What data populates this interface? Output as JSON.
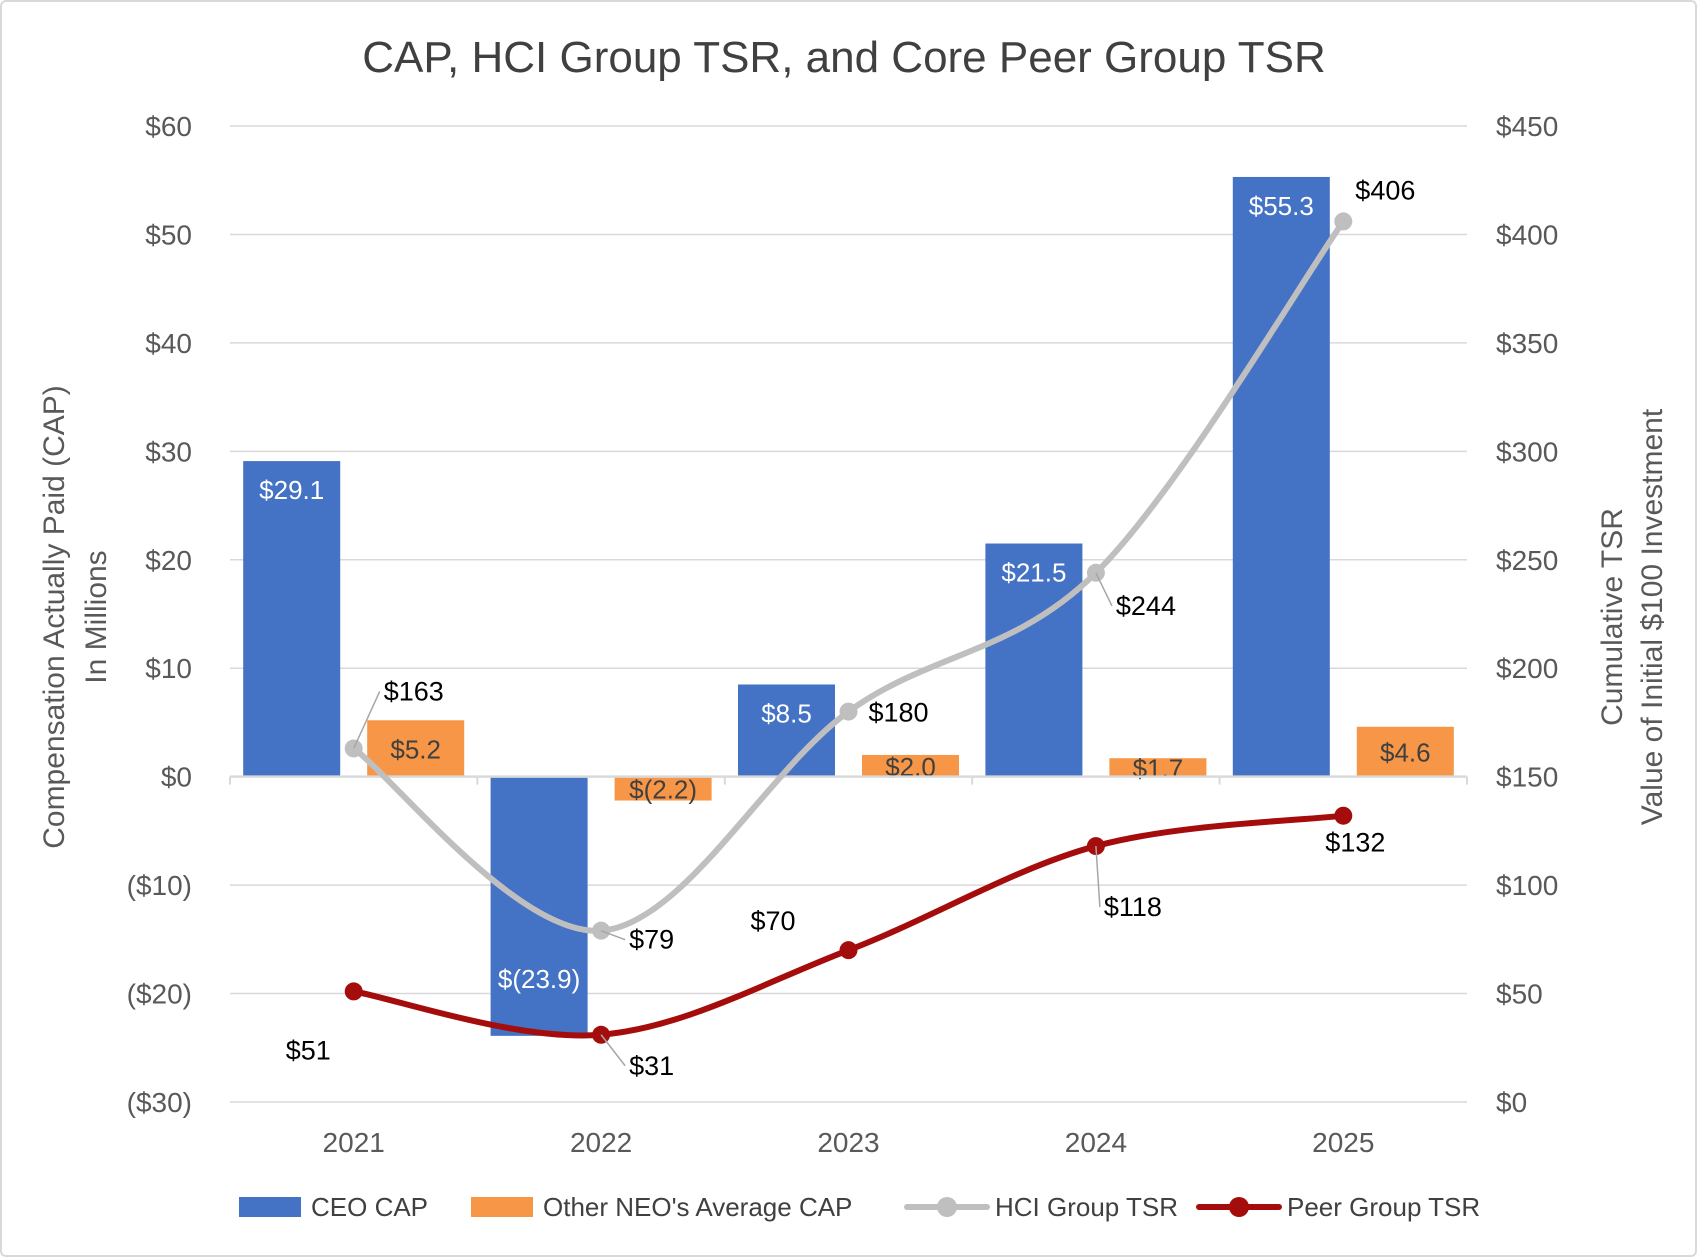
{
  "chart_data": {
    "type": "bar",
    "title": "CAP, HCI Group TSR, and Core Peer Group TSR",
    "categories": [
      "2021",
      "2022",
      "2023",
      "2024",
      "2025"
    ],
    "y_left": {
      "label_lines": [
        "Compensation Actually Paid (CAP)",
        "In Millions"
      ],
      "min": -30,
      "max": 60,
      "step": 10,
      "tick_labels": [
        "($30)",
        "($20)",
        "($10)",
        "$0",
        "$10",
        "$20",
        "$30",
        "$40",
        "$50",
        "$60"
      ]
    },
    "y_right": {
      "label_lines": [
        "Cumulative TSR",
        "Value of Initial $100 Investment"
      ],
      "min": 0,
      "max": 450,
      "step": 50,
      "tick_labels": [
        "$0",
        "$50",
        "$100",
        "$150",
        "$200",
        "$250",
        "$300",
        "$350",
        "$400",
        "$450"
      ]
    },
    "grid": true,
    "legend_position": "bottom",
    "series": [
      {
        "name": "CEO CAP",
        "type": "bar",
        "axis": "left",
        "color": "#4472c4",
        "values": [
          29.1,
          -23.9,
          8.5,
          21.5,
          55.3
        ],
        "labels": [
          "$29.1",
          "$(23.9)",
          "$8.5",
          "$21.5",
          "$55.3"
        ]
      },
      {
        "name": "Other NEO's Average CAP",
        "type": "bar",
        "axis": "left",
        "color": "#f79646",
        "values": [
          5.2,
          -2.2,
          2.0,
          1.7,
          4.6
        ],
        "labels": [
          "$5.2",
          "$(2.2)",
          "$2.0",
          "$1.7",
          "$4.6"
        ]
      },
      {
        "name": "HCI Group TSR",
        "type": "line",
        "axis": "right",
        "color": "#bfbfbf",
        "values": [
          163,
          79,
          180,
          244,
          406
        ],
        "labels": [
          "$163",
          "$79",
          "$180",
          "$244",
          "$406"
        ]
      },
      {
        "name": "Peer Group TSR",
        "type": "line",
        "axis": "right",
        "color": "#a50d0d",
        "values": [
          51,
          31,
          70,
          118,
          132
        ],
        "labels": [
          "$51",
          "$31",
          "$70",
          "$118",
          "$132"
        ]
      }
    ]
  }
}
